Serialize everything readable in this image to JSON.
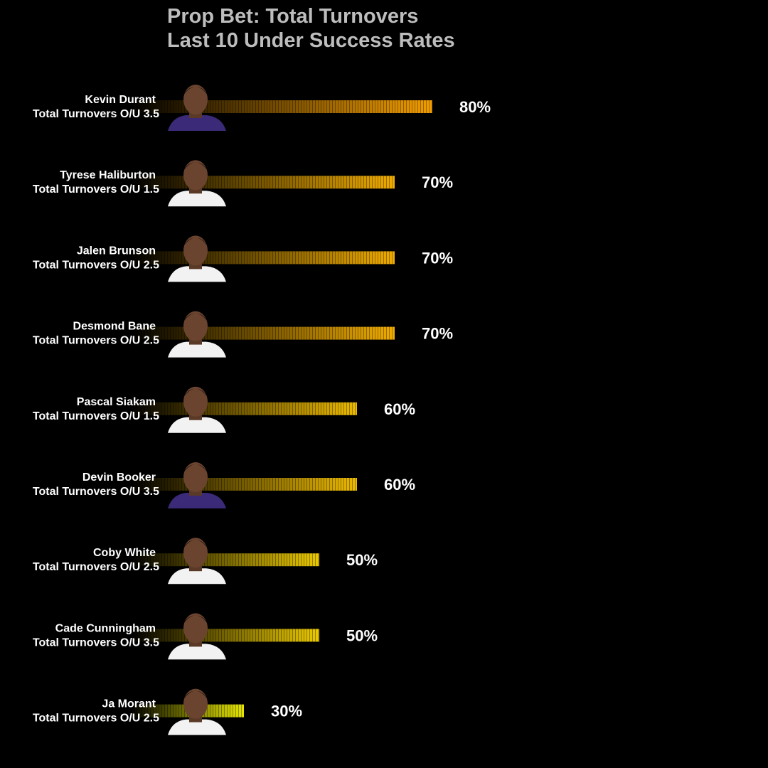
{
  "title": "Prop Bet: Total Turnovers\nLast 10 Under Success Rates",
  "colors": {
    "background": "#000000",
    "title": "#bdbdbd",
    "bar_fill_low": "#e6e600",
    "bar_fill_high": "#f29d00",
    "text": "#ffffff"
  },
  "chart_data": {
    "type": "bar",
    "orientation": "horizontal",
    "title": "Prop Bet: Total Turnovers\nLast 10 Under Success Rates",
    "xlabel": "",
    "ylabel": "",
    "value_suffix": "%",
    "xlim": [
      0,
      100
    ],
    "grid": false,
    "categories": [
      {
        "name": "Kevin Durant",
        "prop": "Total Turnovers O/U 3.5"
      },
      {
        "name": "Tyrese Haliburton",
        "prop": "Total Turnovers O/U 1.5"
      },
      {
        "name": "Jalen Brunson",
        "prop": "Total Turnovers O/U 2.5"
      },
      {
        "name": "Desmond Bane",
        "prop": "Total Turnovers O/U 2.5"
      },
      {
        "name": "Pascal Siakam",
        "prop": "Total Turnovers O/U 1.5"
      },
      {
        "name": "Devin Booker",
        "prop": "Total Turnovers O/U 3.5"
      },
      {
        "name": "Coby White",
        "prop": "Total Turnovers O/U 2.5"
      },
      {
        "name": "Cade Cunningham",
        "prop": "Total Turnovers O/U 3.5"
      },
      {
        "name": "Ja Morant",
        "prop": "Total Turnovers O/U 2.5"
      }
    ],
    "values": [
      80,
      70,
      70,
      70,
      60,
      60,
      50,
      50,
      30
    ],
    "value_labels": [
      "80%",
      "70%",
      "70%",
      "70%",
      "60%",
      "60%",
      "50%",
      "50%",
      "30%"
    ],
    "player_jersey_colors": [
      "#3b2a78",
      "#f2f2f2",
      "#f2f2f2",
      "#f2f2f2",
      "#f2f2f2",
      "#3b2a78",
      "#f2f2f2",
      "#f2f2f2",
      "#f2f2f2"
    ]
  }
}
